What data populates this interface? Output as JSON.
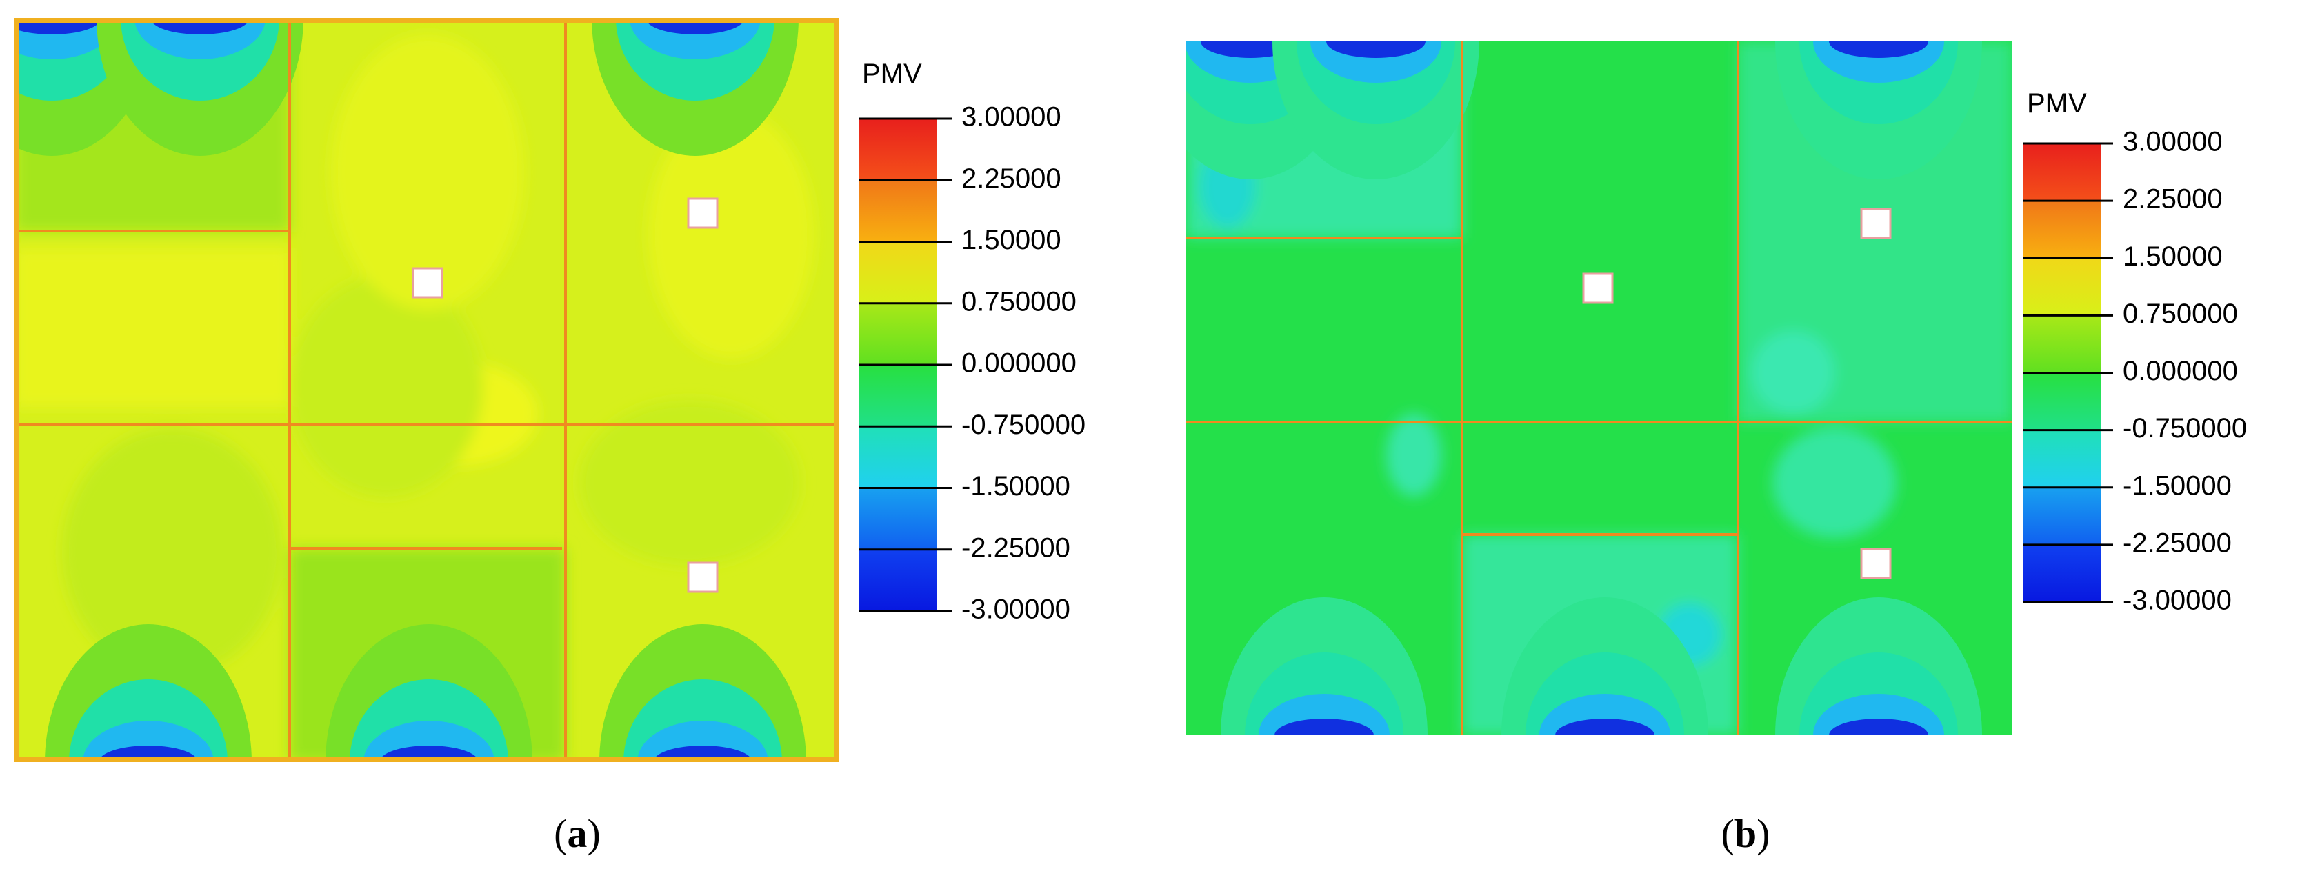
{
  "panels": [
    {
      "legend": {
        "title": "PMV",
        "ticks": [
          "3.00000",
          "2.25000",
          "1.50000",
          "0.750000",
          "0.000000",
          "-0.750000",
          "-1.50000",
          "-2.25000",
          "-3.00000"
        ]
      },
      "caption": [
        "(",
        "a",
        ")"
      ]
    },
    {
      "legend": {
        "title": "PMV",
        "ticks": [
          "3.00000",
          "2.25000",
          "1.50000",
          "0.750000",
          "0.000000",
          "-0.750000",
          "-1.50000",
          "-2.25000",
          "-3.00000"
        ]
      },
      "caption": [
        "(",
        "b",
        ")"
      ]
    }
  ]
}
